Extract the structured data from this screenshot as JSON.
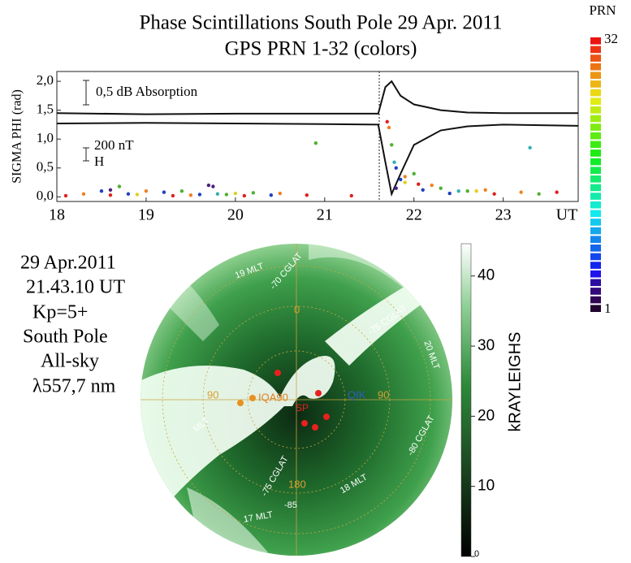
{
  "chart_data": [
    {
      "type": "scatter",
      "title": "Phase Scintillations South Pole 29 Apr. 2011",
      "subtitle": "GPS PRN 1-32 (colors)",
      "y_label": "SIGMA PHI (rad)",
      "x_unit": "UT",
      "annotations": [
        "0,5 dB Absorption",
        "200 nT",
        "H"
      ],
      "xlim": [
        18,
        23.84
      ],
      "xticks": [
        18,
        19,
        20,
        21,
        22,
        23
      ],
      "ylim": [
        -0.08,
        2.17
      ],
      "yticks": [
        {
          "value": 0,
          "label": "0,0"
        },
        {
          "value": 0.5,
          "label": "0,5"
        },
        {
          "value": 1,
          "label": "1,0"
        },
        {
          "value": 1.5,
          "label": "1,5"
        },
        {
          "value": 2,
          "label": "2,0"
        }
      ],
      "colorbar": {
        "label": "PRN",
        "ticks": [
          1,
          32
        ]
      },
      "series": [
        {
          "color": "#2040c0",
          "x": [
            18.5,
            18.8,
            19.2,
            19.6,
            21.8,
            21.85,
            22.1,
            22.4,
            20.4
          ],
          "values": [
            0.1,
            0.05,
            0.08,
            0.04,
            0.5,
            0.3,
            0.12,
            0.06,
            0.03
          ]
        },
        {
          "color": "#50b030",
          "x": [
            18.7,
            19.4,
            20.2,
            20.9,
            21.75,
            22.0,
            22.3,
            22.6,
            23.4,
            19.9
          ],
          "values": [
            0.18,
            0.1,
            0.07,
            0.93,
            0.9,
            0.4,
            0.15,
            0.1,
            0.05,
            0.04
          ]
        },
        {
          "color": "#f08020",
          "x": [
            18.3,
            19.0,
            20.5,
            21.72,
            21.9,
            22.2,
            22.8,
            23.2,
            19.5
          ],
          "values": [
            0.05,
            0.1,
            0.06,
            1.2,
            0.35,
            0.2,
            0.12,
            0.08,
            0.03
          ]
        },
        {
          "color": "#e02020",
          "x": [
            18.1,
            18.6,
            19.3,
            20.1,
            20.8,
            21.3,
            21.7,
            22.05,
            22.9,
            23.6
          ],
          "values": [
            0.02,
            0.03,
            0.02,
            0.02,
            0.03,
            0.02,
            1.3,
            0.22,
            0.05,
            0.08
          ]
        },
        {
          "color": "#30b0b0",
          "x": [
            19.8,
            21.78,
            22.5,
            23.3
          ],
          "values": [
            0.05,
            0.6,
            0.1,
            0.85
          ]
        },
        {
          "color": "#502080",
          "x": [
            18.6,
            19.7,
            19.75,
            21.8
          ],
          "values": [
            0.12,
            0.2,
            0.18,
            0.15
          ]
        },
        {
          "color": "#e0d020",
          "x": [
            18.9,
            20.0,
            21.9,
            22.7
          ],
          "values": [
            0.04,
            0.06,
            0.25,
            0.1
          ]
        }
      ],
      "lines": [
        {
          "color": "#111111",
          "x": [
            18,
            19,
            20,
            21,
            21.6,
            21.68,
            21.75,
            21.85,
            22.0,
            22.3,
            22.6,
            23.0,
            23.84
          ],
          "values": [
            1.45,
            1.43,
            1.44,
            1.44,
            1.44,
            1.9,
            2.0,
            1.75,
            1.6,
            1.5,
            1.46,
            1.45,
            1.45
          ]
        },
        {
          "color": "#111111",
          "x": [
            18,
            19,
            20,
            21,
            21.6,
            21.68,
            21.75,
            21.85,
            22.0,
            22.3,
            22.6,
            23.0,
            23.84
          ],
          "values": [
            1.27,
            1.28,
            1.27,
            1.26,
            1.25,
            0.6,
            0.05,
            0.4,
            0.9,
            1.15,
            1.22,
            1.25,
            1.23
          ]
        }
      ]
    },
    {
      "type": "image",
      "info": [
        "29 Apr.2011",
        "21.43.10 UT",
        "Kp=5+",
        "South Pole",
        "All-sky",
        "λ557,7 nm"
      ],
      "sky_labels": [
        "0",
        "90",
        "180",
        "90",
        "IQA90",
        "QIK",
        "SP",
        "-70 CGLAT",
        "-75 CGLAT",
        "-75 CGLAT",
        "-80 CGLAT",
        "-85",
        "19 MLT",
        "20 MLT",
        "18 MLT",
        "17 MLT",
        "MLT"
      ],
      "colorbar": {
        "label": "kRAYLEIGHS",
        "lim": [
          0,
          44.6
        ],
        "ticks": [
          0,
          10,
          20,
          30,
          40
        ]
      }
    }
  ]
}
